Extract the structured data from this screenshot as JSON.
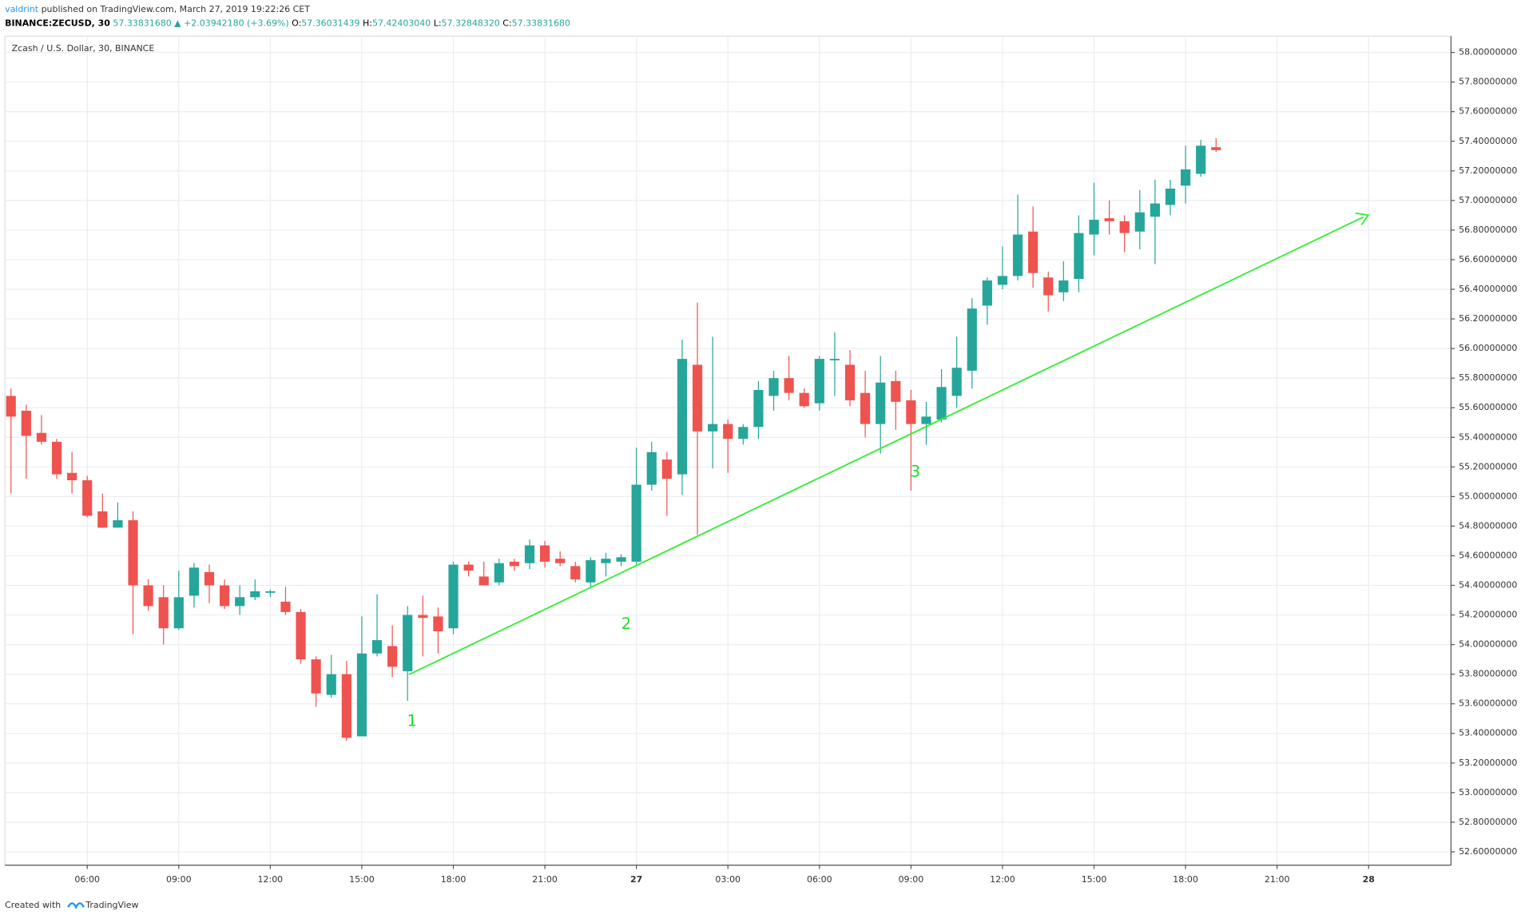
{
  "header": {
    "author": "valdrint",
    "published": "published on TradingView.com, March 27, 2019 19:22:26 CET",
    "symbol": "BINANCE:ZECUSD, 30",
    "last": "57.33831680",
    "change": "▲ +2.03942180 (+3.69%)",
    "o_label": "O:",
    "o": "57.36031439",
    "h_label": "H:",
    "h": "57.42403040",
    "l_label": "L:",
    "l": "57.32848320",
    "c_label": "C:",
    "c": "57.33831680"
  },
  "footer": {
    "created": "Created with",
    "brand": "TradingView"
  },
  "chart_data": {
    "type": "candlestick",
    "title": "Zcash / U.S. Dollar, 30, BINANCE",
    "x": [
      3.5,
      4,
      4.5,
      5,
      5.5,
      6,
      6.5,
      7,
      7.5,
      8,
      8.5,
      9,
      9.5,
      10,
      10.5,
      11,
      11.5,
      12,
      12.5,
      13,
      13.5,
      14,
      14.5,
      15,
      15.5,
      16,
      16.5,
      17,
      17.5,
      18,
      18.5,
      19,
      19.5,
      20,
      20.5,
      21,
      21.5,
      22,
      22.5,
      23,
      23.5,
      24,
      24.5,
      25,
      25.5,
      26,
      26.5,
      27,
      27.5,
      28,
      28.5,
      29,
      29.5,
      30,
      30.5,
      31,
      31.5,
      32,
      32.5,
      33,
      33.5,
      34,
      34.5,
      35,
      35.5,
      36,
      36.5,
      37,
      37.5,
      38,
      38.5,
      39,
      39.5,
      40,
      40.5,
      41,
      41.5,
      42,
      42.5,
      43
    ],
    "open": [
      55.68,
      55.58,
      55.43,
      55.37,
      55.16,
      55.11,
      54.9,
      54.79,
      54.84,
      54.4,
      54.32,
      54.11,
      54.33,
      54.49,
      54.4,
      54.26,
      54.32,
      54.35,
      54.29,
      54.22,
      53.9,
      53.66,
      53.8,
      53.38,
      53.94,
      53.99,
      53.82,
      54.2,
      54.19,
      54.11,
      54.54,
      54.46,
      54.42,
      54.56,
      54.55,
      54.67,
      54.58,
      54.53,
      54.42,
      54.55,
      54.56,
      54.56,
      55.08,
      55.25,
      55.15,
      55.89,
      55.44,
      55.49,
      55.39,
      55.47,
      55.68,
      55.8,
      55.7,
      55.63,
      55.92,
      55.89,
      55.7,
      55.49,
      55.78,
      55.65,
      55.49,
      55.52,
      55.68,
      55.85,
      56.29,
      56.43,
      56.49,
      56.79,
      56.48,
      56.38,
      56.47,
      56.77,
      56.88,
      56.86,
      56.79,
      56.89,
      56.97,
      57.1,
      57.18,
      57.36
    ],
    "high": [
      55.73,
      55.62,
      55.55,
      55.39,
      55.3,
      55.14,
      55.02,
      54.96,
      54.9,
      54.44,
      54.4,
      54.5,
      54.55,
      54.54,
      54.44,
      54.4,
      54.44,
      54.37,
      54.39,
      54.24,
      53.92,
      53.93,
      53.89,
      54.19,
      54.34,
      54.13,
      54.26,
      54.33,
      54.25,
      54.56,
      54.56,
      54.56,
      54.58,
      54.58,
      54.71,
      54.7,
      54.63,
      54.56,
      54.59,
      54.62,
      54.61,
      55.33,
      55.37,
      55.3,
      56.06,
      56.31,
      56.08,
      55.52,
      55.49,
      55.78,
      55.85,
      55.95,
      55.73,
      55.95,
      56.11,
      55.99,
      55.85,
      55.95,
      55.85,
      55.72,
      55.64,
      55.86,
      56.08,
      56.34,
      56.48,
      56.69,
      57.04,
      56.96,
      56.52,
      56.59,
      56.9,
      57.12,
      57.0,
      56.9,
      57.07,
      57.14,
      57.14,
      57.37,
      57.41,
      57.42
    ],
    "low": [
      55.02,
      55.12,
      55.35,
      55.12,
      55.02,
      54.86,
      54.79,
      54.79,
      54.07,
      54.23,
      54.0,
      54.1,
      54.25,
      54.28,
      54.24,
      54.2,
      54.3,
      54.32,
      54.2,
      53.87,
      53.58,
      53.64,
      53.35,
      53.38,
      53.92,
      53.78,
      53.62,
      53.92,
      53.94,
      54.07,
      54.46,
      54.4,
      54.4,
      54.5,
      54.51,
      54.52,
      54.53,
      54.42,
      54.38,
      54.46,
      54.53,
      54.54,
      55.04,
      54.87,
      55.01,
      54.74,
      55.19,
      55.16,
      55.35,
      55.39,
      55.58,
      55.65,
      55.6,
      55.58,
      55.68,
      55.61,
      55.4,
      55.29,
      55.45,
      55.04,
      55.35,
      55.5,
      55.6,
      55.73,
      56.16,
      56.4,
      56.46,
      56.41,
      56.25,
      56.32,
      56.38,
      56.63,
      56.77,
      56.65,
      56.67,
      56.57,
      56.9,
      56.98,
      57.16,
      57.33
    ],
    "close": [
      55.54,
      55.41,
      55.37,
      55.15,
      55.11,
      54.87,
      54.79,
      54.84,
      54.4,
      54.26,
      54.11,
      54.32,
      54.52,
      54.4,
      54.26,
      54.32,
      54.36,
      54.36,
      54.22,
      53.9,
      53.67,
      53.8,
      53.37,
      53.94,
      54.03,
      53.85,
      54.2,
      54.18,
      54.09,
      54.54,
      54.5,
      54.4,
      54.55,
      54.53,
      54.67,
      54.56,
      54.55,
      54.44,
      54.57,
      54.58,
      54.59,
      55.08,
      55.3,
      55.12,
      55.93,
      55.44,
      55.49,
      55.39,
      55.47,
      55.72,
      55.8,
      55.7,
      55.61,
      55.93,
      55.93,
      55.65,
      55.49,
      55.77,
      55.64,
      55.49,
      55.54,
      55.74,
      55.87,
      56.27,
      56.46,
      56.49,
      56.77,
      56.51,
      56.36,
      56.46,
      56.78,
      56.87,
      56.86,
      56.78,
      56.92,
      56.98,
      57.08,
      57.21,
      57.37,
      57.34
    ],
    "up_color": "#26a69a",
    "down_color": "#ef5350",
    "xlim": [
      3.3,
      50.7
    ],
    "xticks": [
      {
        "value": 6,
        "label": "06:00"
      },
      {
        "value": 9,
        "label": "09:00"
      },
      {
        "value": 12,
        "label": "12:00"
      },
      {
        "value": 15,
        "label": "15:00"
      },
      {
        "value": 18,
        "label": "18:00"
      },
      {
        "value": 21,
        "label": "21:00"
      },
      {
        "value": 24,
        "label": "27"
      },
      {
        "value": 27,
        "label": "03:00"
      },
      {
        "value": 30,
        "label": "06:00"
      },
      {
        "value": 33,
        "label": "09:00"
      },
      {
        "value": 36,
        "label": "12:00"
      },
      {
        "value": 39,
        "label": "15:00"
      },
      {
        "value": 42,
        "label": "18:00"
      },
      {
        "value": 45,
        "label": "21:00"
      },
      {
        "value": 48,
        "label": "28"
      }
    ],
    "ylim": [
      52.51,
      58.11
    ],
    "yticks": [
      {
        "value": 52.6,
        "label": "52.60000000"
      },
      {
        "value": 52.8,
        "label": "52.80000000"
      },
      {
        "value": 53,
        "label": "53.00000000"
      },
      {
        "value": 53.2,
        "label": "53.20000000"
      },
      {
        "value": 53.4,
        "label": "53.40000000"
      },
      {
        "value": 53.6,
        "label": "53.60000000"
      },
      {
        "value": 53.8,
        "label": "53.80000000"
      },
      {
        "value": 54,
        "label": "54.00000000"
      },
      {
        "value": 54.2,
        "label": "54.20000000"
      },
      {
        "value": 54.4,
        "label": "54.40000000"
      },
      {
        "value": 54.6,
        "label": "54.60000000"
      },
      {
        "value": 54.8,
        "label": "54.80000000"
      },
      {
        "value": 55,
        "label": "55.00000000"
      },
      {
        "value": 55.2,
        "label": "55.20000000"
      },
      {
        "value": 55.4,
        "label": "55.40000000"
      },
      {
        "value": 55.6,
        "label": "55.60000000"
      },
      {
        "value": 55.8,
        "label": "55.80000000"
      },
      {
        "value": 56,
        "label": "56.00000000"
      },
      {
        "value": 56.2,
        "label": "56.20000000"
      },
      {
        "value": 56.4,
        "label": "56.40000000"
      },
      {
        "value": 56.6,
        "label": "56.60000000"
      },
      {
        "value": 56.8,
        "label": "56.80000000"
      },
      {
        "value": 57,
        "label": "57.00000000"
      },
      {
        "value": 57.2,
        "label": "57.20000000"
      },
      {
        "value": 57.4,
        "label": "57.40000000"
      },
      {
        "value": 57.6,
        "label": "57.60000000"
      },
      {
        "value": 57.8,
        "label": "57.80000000"
      },
      {
        "value": 58,
        "label": "58.00000000"
      }
    ],
    "grid": true,
    "annotations": [
      "1",
      "2",
      "3"
    ]
  }
}
